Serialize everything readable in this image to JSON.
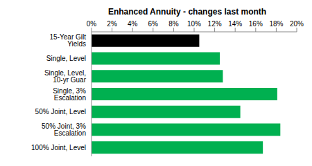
{
  "chart_data": {
    "type": "bar",
    "title": "Enhanced Annuity - changes last month",
    "orientation": "horizontal",
    "categories": [
      "15-Year Gilt Yields",
      "Single, Level",
      "Single, Level, 10-yr Guar",
      "Single, 3% Escalation",
      "50% Joint, Level",
      "50% Joint, 3% Escalation",
      "100% Joint, Level"
    ],
    "values": [
      10.5,
      12.5,
      12.8,
      18.1,
      14.5,
      18.4,
      16.7
    ],
    "colors": [
      "#000000",
      "#00b050",
      "#00b050",
      "#00b050",
      "#00b050",
      "#00b050",
      "#00b050"
    ],
    "xlim": [
      0,
      20
    ],
    "xticks": [
      {
        "value": 0,
        "label": "0%"
      },
      {
        "value": 2,
        "label": "2%"
      },
      {
        "value": 4,
        "label": "4%"
      },
      {
        "value": 6,
        "label": "6%"
      },
      {
        "value": 8,
        "label": "8%"
      },
      {
        "value": 10,
        "label": "10%"
      },
      {
        "value": 12,
        "label": "12%"
      },
      {
        "value": 14,
        "label": "14%"
      },
      {
        "value": 16,
        "label": "16%"
      },
      {
        "value": 18,
        "label": "18%"
      },
      {
        "value": 20,
        "label": "20%"
      }
    ],
    "grid": false
  }
}
